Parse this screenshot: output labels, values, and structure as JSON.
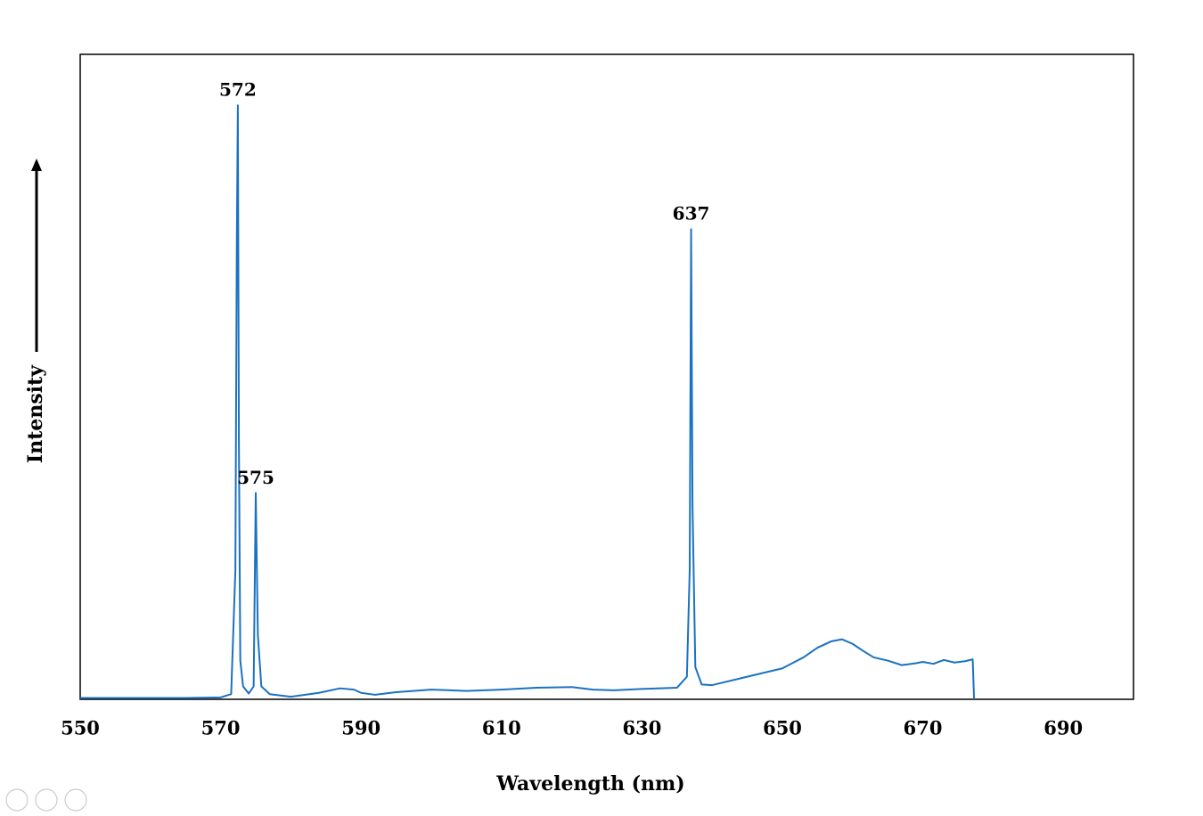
{
  "chart_data": {
    "type": "line",
    "x_label": "Wavelength  (nm)",
    "y_label": "Intensity",
    "xlim": [
      550,
      700
    ],
    "ylim": [
      0,
      100
    ],
    "xticks": [
      550,
      570,
      590,
      610,
      630,
      650,
      670,
      690
    ],
    "series": [
      {
        "color": "#1b72c0",
        "x": [
          550,
          555,
          560,
          565,
          570,
          571.5,
          572.1,
          572.3,
          572.45,
          572.6,
          572.8,
          573.2,
          574,
          574.7,
          575,
          575.3,
          575.8,
          577,
          580,
          584,
          587,
          589,
          590,
          592,
          595,
          600,
          605,
          610,
          615,
          620,
          623,
          626,
          630,
          635,
          636.4,
          636.8,
          637,
          637.2,
          637.6,
          638.5,
          640,
          645,
          650,
          653,
          655,
          657,
          658.5,
          660,
          661.5,
          663,
          665,
          667,
          669,
          670,
          671.5,
          673,
          674.5,
          676,
          677.1,
          677.3
        ],
        "values": [
          0.2,
          0.2,
          0.2,
          0.2,
          0.3,
          0.8,
          20,
          70,
          92.1,
          40,
          6,
          2,
          0.9,
          2,
          32,
          10,
          2,
          0.8,
          0.4,
          1.0,
          1.7,
          1.5,
          1.0,
          0.7,
          1.1,
          1.5,
          1.3,
          1.5,
          1.8,
          1.9,
          1.5,
          1.4,
          1.6,
          1.8,
          3.5,
          20,
          72.9,
          30,
          5,
          2.3,
          2.2,
          3.5,
          4.8,
          6.5,
          8.0,
          9.0,
          9.3,
          8.6,
          7.5,
          6.5,
          6.0,
          5.3,
          5.6,
          5.8,
          5.5,
          6.1,
          5.7,
          5.9,
          6.2,
          0
        ]
      }
    ],
    "peak_labels": [
      {
        "label": "572",
        "x": 572.45,
        "y": 92.1
      },
      {
        "label": "575",
        "x": 575,
        "y": 32
      },
      {
        "label": "637",
        "x": 637,
        "y": 72.9
      }
    ]
  }
}
